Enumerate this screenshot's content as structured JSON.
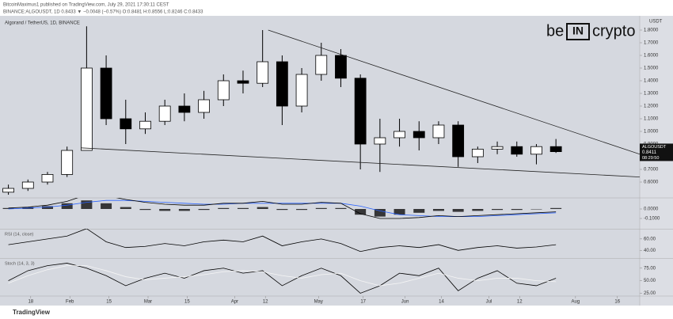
{
  "header": {
    "line1": "BitcoinMaximus1 published on TradingView.com, July 29, 2021 17:30:11 CEST",
    "line2": "BINANCE:ALGOUSDT, 1D 0.8433 ▼ −0.0048 (−0.57%) O:0.8481 H:0.8556 L:0.8246 C:0.8433"
  },
  "logo": {
    "left": "be",
    "box": "IN",
    "right": "crypto"
  },
  "footer": "TradingView",
  "chart_data": [
    {
      "type": "candlestick",
      "title": "Algorand / TetherUS, 1D, BINANCE",
      "currency": "USDT",
      "x": [
        10,
        17,
        24,
        31,
        38,
        45,
        52,
        59,
        66,
        73,
        80,
        87,
        94,
        101,
        108,
        115,
        122,
        129,
        136,
        143,
        150,
        157,
        164,
        171,
        178,
        185,
        192,
        199,
        206
      ],
      "open": [
        0.52,
        0.55,
        0.6,
        0.66,
        0.85,
        1.5,
        1.1,
        1.02,
        1.08,
        1.2,
        1.15,
        1.25,
        1.4,
        1.38,
        1.55,
        1.2,
        1.45,
        1.6,
        1.42,
        0.9,
        0.95,
        1.0,
        0.95,
        1.05,
        0.8,
        0.86,
        0.88,
        0.82,
        0.88
      ],
      "high": [
        0.58,
        0.62,
        0.68,
        0.88,
        1.83,
        1.6,
        1.25,
        1.15,
        1.25,
        1.3,
        1.32,
        1.45,
        1.48,
        1.8,
        1.6,
        1.5,
        1.7,
        1.65,
        1.45,
        1.1,
        1.1,
        1.08,
        1.08,
        1.08,
        0.88,
        0.92,
        0.92,
        0.9,
        0.94
      ],
      "low": [
        0.5,
        0.53,
        0.58,
        0.64,
        0.85,
        1.05,
        0.9,
        0.98,
        1.05,
        1.08,
        1.1,
        1.2,
        1.3,
        1.35,
        1.05,
        1.15,
        1.4,
        1.35,
        0.7,
        0.68,
        0.88,
        0.85,
        0.9,
        0.72,
        0.75,
        0.82,
        0.8,
        0.74,
        0.83
      ],
      "close": [
        0.55,
        0.6,
        0.66,
        0.85,
        1.5,
        1.1,
        1.02,
        1.08,
        1.2,
        1.15,
        1.25,
        1.4,
        1.38,
        1.55,
        1.2,
        1.45,
        1.6,
        1.42,
        0.9,
        0.95,
        1.0,
        0.95,
        1.05,
        0.8,
        0.86,
        0.88,
        0.82,
        0.88,
        0.84
      ],
      "up_color": "#ffffff",
      "down_color": "#000000",
      "xlim": [
        7,
        236
      ],
      "xticks": [
        {
          "value": 18,
          "label": "18"
        },
        {
          "value": 32,
          "label": "Feb"
        },
        {
          "value": 46,
          "label": "15"
        },
        {
          "value": 60,
          "label": "Mar"
        },
        {
          "value": 74,
          "label": "15"
        },
        {
          "value": 91,
          "label": "Apr"
        },
        {
          "value": 102,
          "label": "12"
        },
        {
          "value": 121,
          "label": "May"
        },
        {
          "value": 137,
          "label": "17"
        },
        {
          "value": 152,
          "label": "Jun"
        },
        {
          "value": 165,
          "label": "14"
        },
        {
          "value": 182,
          "label": "Jul"
        },
        {
          "value": 193,
          "label": "12"
        },
        {
          "value": 213,
          "label": "Aug"
        },
        {
          "value": 228,
          "label": "16"
        }
      ],
      "ylim": [
        0.5,
        1.9
      ],
      "yticks": [
        {
          "value": 0.6,
          "label": "0.6000"
        },
        {
          "value": 0.7,
          "label": "0.7000"
        },
        {
          "value": 0.8,
          "label": "0.8000"
        },
        {
          "value": 0.9,
          "label": "0.9000"
        },
        {
          "value": 1.0,
          "label": "1.0000"
        },
        {
          "value": 1.1,
          "label": "1.1000"
        },
        {
          "value": 1.2,
          "label": "1.2000"
        },
        {
          "value": 1.3,
          "label": "1.3000"
        },
        {
          "value": 1.4,
          "label": "1.4000"
        },
        {
          "value": 1.5,
          "label": "1.5000"
        },
        {
          "value": 1.6,
          "label": "1.6000"
        },
        {
          "value": 1.7,
          "label": "1.7000"
        },
        {
          "value": 1.8,
          "label": "1.8000"
        }
      ],
      "trendlines": [
        {
          "x": [
            103,
            236
          ],
          "y": [
            1.8,
            0.82
          ]
        },
        {
          "x": [
            36,
            236
          ],
          "y": [
            0.87,
            0.64
          ]
        }
      ],
      "price_tag": {
        "symbol": "ALGOUSDT",
        "value": 0.8411,
        "countdown": "08:29:50"
      }
    },
    {
      "type": "macd",
      "histogram": [
        0.01,
        0.02,
        0.03,
        0.06,
        0.09,
        0.06,
        0.02,
        -0.01,
        -0.02,
        -0.02,
        -0.01,
        0.01,
        0.01,
        0.02,
        -0.01,
        -0.01,
        0.01,
        0.01,
        -0.06,
        -0.08,
        -0.06,
        -0.04,
        -0.02,
        -0.03,
        -0.02,
        -0.01,
        -0.01,
        0.0,
        0.01
      ],
      "macd": [
        0.01,
        0.02,
        0.04,
        0.08,
        0.15,
        0.14,
        0.1,
        0.07,
        0.05,
        0.04,
        0.04,
        0.06,
        0.06,
        0.08,
        0.05,
        0.05,
        0.07,
        0.06,
        -0.05,
        -0.1,
        -0.1,
        -0.09,
        -0.07,
        -0.08,
        -0.07,
        -0.06,
        -0.05,
        -0.04,
        -0.03
      ],
      "signal": [
        0.0,
        0.01,
        0.02,
        0.04,
        0.07,
        0.09,
        0.09,
        0.08,
        0.07,
        0.06,
        0.05,
        0.05,
        0.06,
        0.06,
        0.06,
        0.06,
        0.06,
        0.06,
        0.03,
        -0.02,
        -0.06,
        -0.07,
        -0.08,
        -0.08,
        -0.08,
        -0.07,
        -0.06,
        -0.05,
        -0.04
      ],
      "histogram_color": "#000000",
      "macd_color": "#000000",
      "signal_color": "#2962ff",
      "ylim": [
        -0.2,
        0.1
      ],
      "yticks": [
        {
          "value": 0,
          "label": "0.0000"
        },
        {
          "value": -0.1,
          "label": "-0.1000"
        }
      ]
    },
    {
      "type": "line",
      "title": "RSI (14, close)",
      "series": [
        {
          "values": [
            50,
            55,
            60,
            65,
            78,
            55,
            45,
            47,
            52,
            48,
            55,
            58,
            55,
            65,
            48,
            55,
            60,
            52,
            38,
            45,
            48,
            45,
            50,
            40,
            45,
            48,
            44,
            46,
            50
          ],
          "color": "#000000"
        }
      ],
      "ylim": [
        28,
        75
      ],
      "yticks": [
        {
          "value": 60,
          "label": "60.00"
        },
        {
          "value": 40,
          "label": "40.00"
        }
      ]
    },
    {
      "type": "line",
      "title": "Stoch (14, 3, 3)",
      "series": [
        {
          "values": [
            50,
            70,
            80,
            85,
            75,
            60,
            40,
            55,
            65,
            55,
            70,
            75,
            65,
            70,
            40,
            60,
            75,
            60,
            25,
            40,
            65,
            60,
            75,
            30,
            55,
            70,
            45,
            40,
            55
          ],
          "color": "#000000"
        },
        {
          "values": [
            45,
            60,
            72,
            80,
            80,
            70,
            58,
            52,
            55,
            58,
            62,
            68,
            70,
            68,
            60,
            55,
            62,
            65,
            50,
            40,
            45,
            55,
            65,
            55,
            50,
            55,
            55,
            50,
            48
          ],
          "color": "#f5f5f5"
        }
      ],
      "ylim": [
        21,
        92
      ],
      "yticks": [
        {
          "value": 75,
          "label": "75.00"
        },
        {
          "value": 50,
          "label": "50.00"
        },
        {
          "value": 25,
          "label": "25.00"
        }
      ]
    }
  ]
}
